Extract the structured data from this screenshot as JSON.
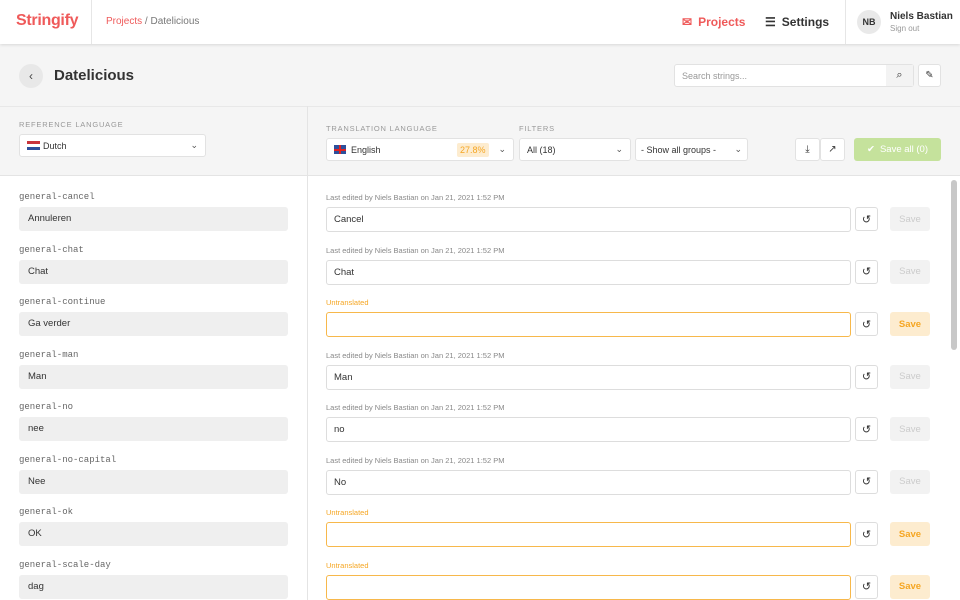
{
  "app": {
    "logo": "Stringify"
  },
  "breadcrumb": {
    "projects": "Projects",
    "separator": "/",
    "current": "Datelicious"
  },
  "nav": {
    "projects": "Projects",
    "settings": "Settings"
  },
  "user": {
    "initials": "NB",
    "name": "Niels Bastian",
    "sign_out": "Sign out"
  },
  "page": {
    "title": "Datelicious",
    "search_placeholder": "Search strings..."
  },
  "toolbar": {
    "reference_label": "REFERENCE LANGUAGE",
    "reference_language": "Dutch",
    "translation_label": "TRANSLATION LANGUAGE",
    "translation_language": "English",
    "translation_progress": "27.8%",
    "filters_label": "FILTERS",
    "filter_status": "All (18)",
    "filter_group": "- Show all groups -",
    "save_all": "Save all (0)"
  },
  "colors": {
    "brand": "#ef5a5a",
    "untranslated": "#f5a623",
    "save_all": "#c5e29c"
  },
  "rows": [
    {
      "key": "general-cancel",
      "reference": "Annuleren",
      "meta": "Last edited by Niels Bastian on Jan 21, 2021 1:52 PM",
      "value": "Cancel",
      "untranslated": false,
      "save": "Save"
    },
    {
      "key": "general-chat",
      "reference": "Chat",
      "meta": "Last edited by Niels Bastian on Jan 21, 2021 1:52 PM",
      "value": "Chat",
      "untranslated": false,
      "save": "Save"
    },
    {
      "key": "general-continue",
      "reference": "Ga verder",
      "meta": "Untranslated",
      "value": "",
      "untranslated": true,
      "save": "Save"
    },
    {
      "key": "general-man",
      "reference": "Man",
      "meta": "Last edited by Niels Bastian on Jan 21, 2021 1:52 PM",
      "value": "Man",
      "untranslated": false,
      "save": "Save"
    },
    {
      "key": "general-no",
      "reference": "nee",
      "meta": "Last edited by Niels Bastian on Jan 21, 2021 1:52 PM",
      "value": "no",
      "untranslated": false,
      "save": "Save"
    },
    {
      "key": "general-no-capital",
      "reference": "Nee",
      "meta": "Last edited by Niels Bastian on Jan 21, 2021 1:52 PM",
      "value": "No",
      "untranslated": false,
      "save": "Save"
    },
    {
      "key": "general-ok",
      "reference": "OK",
      "meta": "Untranslated",
      "value": "",
      "untranslated": true,
      "save": "Save"
    },
    {
      "key": "general-scale-day",
      "reference": "dag",
      "meta": "Untranslated",
      "value": "",
      "untranslated": true,
      "save": "Save"
    }
  ]
}
